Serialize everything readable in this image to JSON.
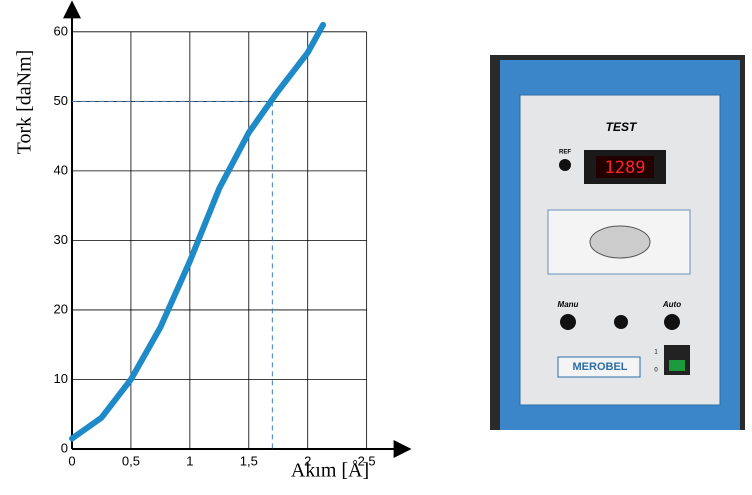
{
  "chart_data": {
    "type": "line",
    "xlabel": "Akım [Å]",
    "ylabel": "Tork [daNm]",
    "x": [
      0,
      0.25,
      0.5,
      0.75,
      1,
      1.25,
      1.5,
      1.75,
      2,
      2.13
    ],
    "series": [
      {
        "color": "#1f8ac8",
        "values": [
          1.5,
          4.5,
          10,
          17.5,
          27,
          37.5,
          45.5,
          51.5,
          57,
          61
        ]
      }
    ],
    "xlim": [
      0,
      2.8
    ],
    "ylim": [
      0,
      64
    ],
    "xticks": [
      0,
      {
        "value": 0.5,
        "label": "0,5"
      },
      1,
      {
        "value": 1.5,
        "label": "1,5"
      },
      2,
      {
        "value": 2.5,
        "label": "2,5"
      }
    ],
    "yticks": [
      0,
      10,
      20,
      30,
      40,
      50,
      60
    ],
    "reference": {
      "x": 1.7,
      "y": 50
    },
    "grid": true
  },
  "photo": {
    "title": "TEST",
    "ref": "REF",
    "display": "1289",
    "left_knob": "Manu",
    "right_knob": "Auto",
    "brand": "MEROBEL",
    "switch_on": "1",
    "switch_off": "0"
  }
}
